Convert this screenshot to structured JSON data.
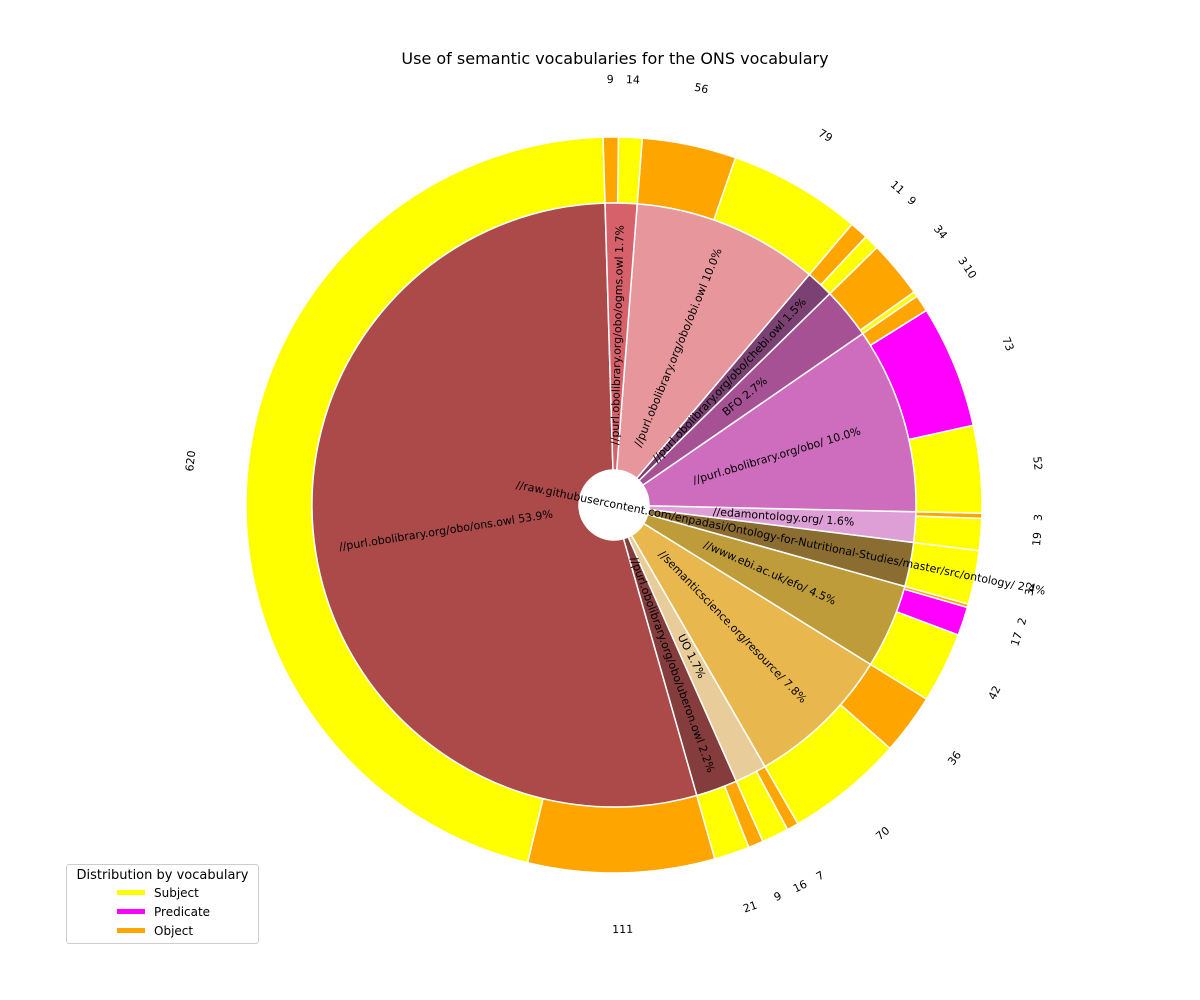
{
  "chart_data": {
    "type": "pie",
    "title": "Use of semantic vocabularies for the ONS vocabulary",
    "role_colors": {
      "Subject": "#ffff00",
      "Predicate": "#ff00ff",
      "Object": "#ffa500"
    },
    "vocabularies": [
      {
        "label": "//purl.obolibrary.org/obo/ons.owl",
        "percent": "53.9%",
        "color": "#ac4a4a",
        "outer": [
          {
            "role": "Subject",
            "value": 620
          },
          {
            "role": "Object",
            "value": 111
          }
        ]
      },
      {
        "label": "//purl.obolibrary.org/obo/uberon.owl",
        "percent": "2.2%",
        "color": "#843c3c",
        "outer": [
          {
            "role": "Subject",
            "value": 21
          },
          {
            "role": "Object",
            "value": 9
          }
        ]
      },
      {
        "label": "UO",
        "percent": "1.7%",
        "color": "#e8cc9a",
        "outer": [
          {
            "role": "Subject",
            "value": 16
          },
          {
            "role": "Object",
            "value": 7
          }
        ]
      },
      {
        "label": "//semanticscience.org/resource/",
        "percent": "7.8%",
        "color": "#e8b84f",
        "outer": [
          {
            "role": "Subject",
            "value": 70
          },
          {
            "role": "Object",
            "value": 36
          }
        ]
      },
      {
        "label": "//www.ebi.ac.uk/efo/",
        "percent": "4.5%",
        "color": "#bd9c39",
        "outer": [
          {
            "role": "Subject",
            "value": 42
          },
          {
            "role": "Predicate",
            "value": 17
          },
          {
            "role": "Object",
            "value": 2
          }
        ]
      },
      {
        "label": "//raw.githubusercontent.com/enpadasi/Ontology-for-Nutritional-Studies/master/src/ontology/",
        "percent": "2.4%",
        "color": "#8c6d31",
        "outer": [
          {
            "role": "Subject",
            "value": 32
          }
        ]
      },
      {
        "label": "//edamontology.org/",
        "percent": "1.6%",
        "color": "#de9ed6",
        "outer": [
          {
            "role": "Subject",
            "value": 19
          },
          {
            "role": "Object",
            "value": 3
          }
        ]
      },
      {
        "label": "//purl.obolibrary.org/obo/",
        "percent": "10.0%",
        "color": "#ce6dbd",
        "outer": [
          {
            "role": "Subject",
            "value": 52
          },
          {
            "role": "Predicate",
            "value": 73
          },
          {
            "role": "Object",
            "value": 10
          }
        ]
      },
      {
        "label": "BFO",
        "percent": "2.7%",
        "color": "#a55194",
        "outer": [
          {
            "role": "Subject",
            "value": 3
          },
          {
            "role": "Object",
            "value": 34
          }
        ]
      },
      {
        "label": "//purl.obolibrary.org/obo/chebi.owl",
        "percent": "1.5%",
        "color": "#7b4173",
        "outer": [
          {
            "role": "Subject",
            "value": 9
          },
          {
            "role": "Object",
            "value": 11
          }
        ]
      },
      {
        "label": "//purl.obolibrary.org/obo/obi.owl",
        "percent": "10.0%",
        "color": "#e7969c",
        "outer": [
          {
            "role": "Subject",
            "value": 79
          },
          {
            "role": "Object",
            "value": 56
          }
        ]
      },
      {
        "label": "//purl.obolibrary.org/obo/ogms.owl",
        "percent": "1.7%",
        "color": "#d6616b",
        "outer": [
          {
            "role": "Subject",
            "value": 14
          },
          {
            "role": "Object",
            "value": 9
          }
        ]
      }
    ],
    "legend": {
      "title": "Distribution by vocabulary",
      "placement": "bottom-left",
      "entries": [
        {
          "label": "Subject",
          "color": "#ffff00"
        },
        {
          "label": "Predicate",
          "color": "#ff00ff"
        },
        {
          "label": "Object",
          "color": "#ffa500"
        }
      ]
    }
  }
}
